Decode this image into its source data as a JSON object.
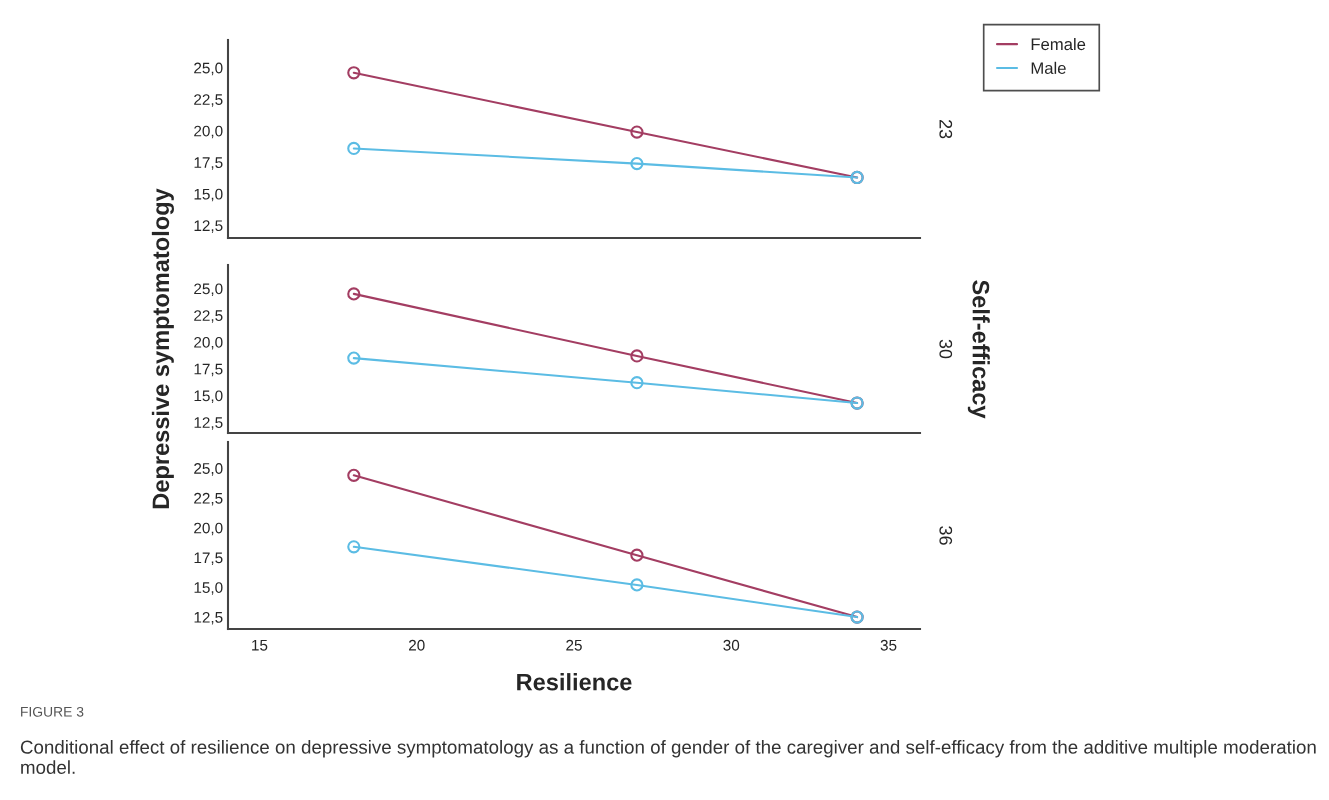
{
  "chart_data": [
    {
      "type": "line",
      "x": [
        18,
        27,
        34
      ],
      "xlim": [
        14,
        36
      ],
      "xticks": [
        15,
        20,
        25,
        30,
        35
      ],
      "ylim": [
        11.5,
        27.2
      ],
      "yticks": [
        {
          "value": 12.5,
          "label": "12,5"
        },
        {
          "value": 15,
          "label": "15,0"
        },
        {
          "value": 17.5,
          "label": "17,5"
        },
        {
          "value": 20,
          "label": "20,0"
        },
        {
          "value": 22.5,
          "label": "22,5"
        },
        {
          "value": 25,
          "label": "25,0"
        }
      ],
      "tick_labels": "y",
      "marker": "circle",
      "grid": false,
      "legend": "right",
      "series": [
        {
          "name": "Female",
          "color": "#a33d62",
          "values": [
            24.6,
            19.9,
            16.3
          ]
        },
        {
          "name": "Male",
          "color": "#5bbce4",
          "values": [
            18.6,
            17.4,
            16.3
          ]
        }
      ],
      "annotations": [
        "23"
      ]
    },
    {
      "type": "line",
      "x": [
        18,
        27,
        34
      ],
      "xlim": [
        14,
        36
      ],
      "xticks": [
        15,
        20,
        25,
        30,
        35
      ],
      "ylim": [
        11.5,
        27.2
      ],
      "yticks": [
        {
          "value": 12.5,
          "label": "12,5"
        },
        {
          "value": 15,
          "label": "15,0"
        },
        {
          "value": 17.5,
          "label": "17,5"
        },
        {
          "value": 20,
          "label": "20,0"
        },
        {
          "value": 22.5,
          "label": "22,5"
        },
        {
          "value": 25,
          "label": "25,0"
        }
      ],
      "tick_labels": "y",
      "marker": "circle",
      "grid": false,
      "ylabel": "Depressive symptomatology",
      "y2label": "Self-efficacy",
      "series": [
        {
          "color": "#a33d62",
          "values": [
            24.5,
            18.7,
            14.3
          ]
        },
        {
          "color": "#5bbce4",
          "values": [
            18.5,
            16.2,
            14.3
          ]
        }
      ],
      "annotations": [
        "30"
      ]
    },
    {
      "type": "line",
      "x": [
        18,
        27,
        34
      ],
      "xlim": [
        14,
        36
      ],
      "xticks": [
        15,
        20,
        25,
        30,
        35
      ],
      "ylim": [
        11.5,
        27.2
      ],
      "yticks": [
        {
          "value": 12.5,
          "label": "12,5"
        },
        {
          "value": 15,
          "label": "15,0"
        },
        {
          "value": 17.5,
          "label": "17,5"
        },
        {
          "value": 20,
          "label": "20,0"
        },
        {
          "value": 22.5,
          "label": "22,5"
        },
        {
          "value": 25,
          "label": "25,0"
        }
      ],
      "marker": "circle",
      "grid": false,
      "xlabel": "Resilience",
      "series": [
        {
          "color": "#a33d62",
          "values": [
            24.4,
            17.7,
            12.5
          ]
        },
        {
          "color": "#5bbce4",
          "values": [
            18.4,
            15.2,
            12.5
          ]
        }
      ],
      "annotations": [
        "36",
        "FIGURE 3",
        "Conditional effect of resilience on depressive symptomatology as a function of gender of the caregiver and self-efficacy from the additive multiple moderation model."
      ]
    }
  ]
}
